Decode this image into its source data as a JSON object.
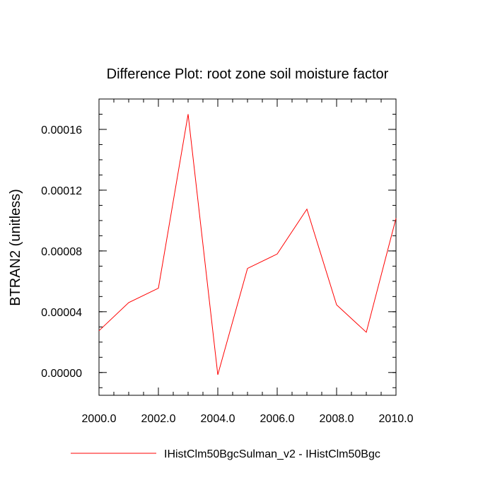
{
  "chart_data": {
    "type": "line",
    "title": "Difference Plot: root zone soil moisture factor",
    "ylabel": "BTRAN2  (unitless)",
    "xlabel": "",
    "xlim": [
      2000.0,
      2010.0
    ],
    "ylim": [
      -1.5e-05,
      0.00018
    ],
    "x_ticks": [
      2000.0,
      2002.0,
      2004.0,
      2006.0,
      2008.0,
      2010.0
    ],
    "x_tick_labels": [
      "2000.0",
      "2002.0",
      "2004.0",
      "2006.0",
      "2008.0",
      "2010.0"
    ],
    "y_ticks": [
      0.0,
      4e-05,
      8e-05,
      0.00012,
      0.00016
    ],
    "y_tick_labels": [
      "0.00000",
      "0.00004",
      "0.00008",
      "0.00012",
      "0.00016"
    ],
    "x_minor_step": 0.5,
    "y_minor_step": 1e-05,
    "grid": false,
    "legend_position": "bottom",
    "series": [
      {
        "name": "IHistClm50BgcSulman_v2 - IHistClm50Bgc",
        "color": "#ff0000",
        "x": [
          2000,
          2001,
          2002,
          2003,
          2004,
          2005,
          2006,
          2007,
          2008,
          2009,
          2010
        ],
        "y": [
          2.75e-05,
          4.6e-05,
          5.55e-05,
          0.00017,
          -1.5e-06,
          6.85e-05,
          7.8e-05,
          0.0001075,
          4.45e-05,
          2.65e-05,
          0.0001015
        ]
      }
    ]
  }
}
